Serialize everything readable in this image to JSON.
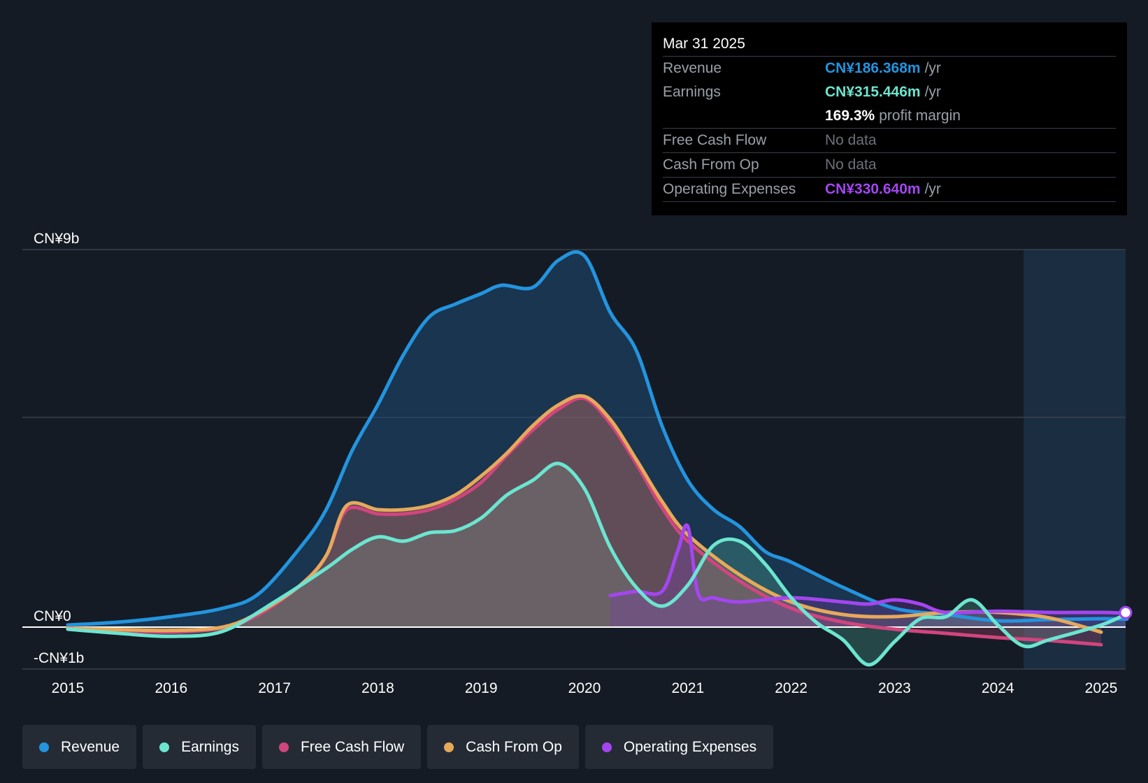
{
  "tooltip": {
    "date": "Mar 31 2025",
    "rows": [
      {
        "label": "Revenue",
        "value": "CN¥186.368m",
        "unit": "/yr",
        "color": "#2394df"
      },
      {
        "label": "Earnings",
        "value": "CN¥315.446m",
        "unit": "/yr",
        "color": "#6ce5d0"
      },
      {
        "label": "",
        "value": "169.3%",
        "unit": "profit margin",
        "color": "#ffffff"
      },
      {
        "label": "Free Cash Flow",
        "value": "No data",
        "unit": "",
        "color": "#6c7179"
      },
      {
        "label": "Cash From Op",
        "value": "No data",
        "unit": "",
        "color": "#6c7179"
      },
      {
        "label": "Operating Expenses",
        "value": "CN¥330.640m",
        "unit": "/yr",
        "color": "#a346f0"
      }
    ]
  },
  "legend": [
    {
      "label": "Revenue",
      "color": "#2394df"
    },
    {
      "label": "Earnings",
      "color": "#6ce5d0"
    },
    {
      "label": "Free Cash Flow",
      "color": "#d1457e"
    },
    {
      "label": "Cash From Op",
      "color": "#e6a95a"
    },
    {
      "label": "Operating Expenses",
      "color": "#a346f0"
    }
  ],
  "chart_data": {
    "type": "line",
    "y_tick_labels": [
      "CN¥9b",
      "CN¥0",
      "-CN¥1b"
    ],
    "y_ticks": [
      9,
      0,
      -1
    ],
    "ylim": [
      -1,
      9
    ],
    "xlim": [
      2014.57,
      2025.25
    ],
    "x_ticks": [
      2015,
      2016,
      2017,
      2018,
      2019,
      2020,
      2021,
      2022,
      2023,
      2024,
      2025
    ],
    "x_tick_labels": [
      "2015",
      "2016",
      "2017",
      "2018",
      "2019",
      "2020",
      "2021",
      "2022",
      "2023",
      "2024",
      "2025"
    ],
    "grid": true,
    "legend_position": "bottom",
    "units": "CN¥ billions",
    "series": [
      {
        "name": "Revenue",
        "color": "#2394df",
        "x": [
          2015.0,
          2015.5,
          2016.0,
          2016.5,
          2016.85,
          2017.25,
          2017.5,
          2017.75,
          2018.0,
          2018.25,
          2018.5,
          2018.75,
          2019.0,
          2019.2,
          2019.5,
          2019.75,
          2020.0,
          2020.25,
          2020.5,
          2020.75,
          2021.0,
          2021.25,
          2021.5,
          2021.75,
          2022.0,
          2022.5,
          2023.0,
          2023.5,
          2024.0,
          2024.5,
          2025.0,
          2025.25
        ],
        "y": [
          0.05,
          0.12,
          0.25,
          0.45,
          0.8,
          1.9,
          2.8,
          4.2,
          5.3,
          6.5,
          7.4,
          7.7,
          7.95,
          8.15,
          8.1,
          8.75,
          8.85,
          7.5,
          6.6,
          4.8,
          3.5,
          2.8,
          2.4,
          1.8,
          1.55,
          0.95,
          0.45,
          0.3,
          0.15,
          0.18,
          0.2,
          0.19
        ]
      },
      {
        "name": "Earnings",
        "color": "#6ce5d0",
        "x": [
          2015.0,
          2015.5,
          2016.0,
          2016.5,
          2017.0,
          2017.5,
          2017.75,
          2018.0,
          2018.25,
          2018.5,
          2018.75,
          2019.0,
          2019.25,
          2019.5,
          2019.75,
          2020.0,
          2020.25,
          2020.5,
          2020.75,
          2021.0,
          2021.25,
          2021.5,
          2021.75,
          2022.0,
          2022.25,
          2022.5,
          2022.75,
          2023.0,
          2023.25,
          2023.5,
          2023.75,
          2024.0,
          2024.25,
          2024.5,
          2025.0,
          2025.25
        ],
        "y": [
          -0.05,
          -0.15,
          -0.22,
          -0.1,
          0.6,
          1.4,
          1.85,
          2.15,
          2.05,
          2.25,
          2.3,
          2.6,
          3.15,
          3.5,
          3.9,
          3.3,
          1.9,
          0.95,
          0.5,
          1.0,
          1.95,
          2.05,
          1.5,
          0.7,
          0.1,
          -0.3,
          -0.9,
          -0.35,
          0.2,
          0.25,
          0.65,
          0.05,
          -0.45,
          -0.3,
          0.05,
          0.32
        ]
      },
      {
        "name": "Free Cash Flow",
        "color": "#d1457e",
        "x": [
          2015.0,
          2015.5,
          2016.0,
          2016.5,
          2016.85,
          2017.25,
          2017.5,
          2017.7,
          2018.0,
          2018.25,
          2018.5,
          2018.75,
          2019.0,
          2019.25,
          2019.5,
          2019.75,
          2020.0,
          2020.25,
          2020.5,
          2020.75,
          2021.0,
          2021.5,
          2022.0,
          2022.5,
          2023.0,
          2023.5,
          2024.0,
          2024.5,
          2025.0
        ],
        "y": [
          -0.02,
          -0.08,
          -0.12,
          -0.02,
          0.3,
          1.0,
          1.7,
          2.8,
          2.7,
          2.7,
          2.8,
          3.05,
          3.45,
          4.1,
          4.7,
          5.2,
          5.45,
          4.85,
          3.9,
          2.85,
          2.05,
          1.1,
          0.45,
          0.12,
          -0.05,
          -0.15,
          -0.25,
          -0.32,
          -0.42
        ]
      },
      {
        "name": "Cash From Op",
        "color": "#e6a95a",
        "x": [
          2015.0,
          2015.5,
          2016.0,
          2016.5,
          2016.85,
          2017.25,
          2017.5,
          2017.7,
          2018.0,
          2018.25,
          2018.5,
          2018.75,
          2019.0,
          2019.25,
          2019.5,
          2019.75,
          2020.0,
          2020.25,
          2020.5,
          2020.75,
          2021.0,
          2021.5,
          2022.0,
          2022.5,
          2023.0,
          2023.5,
          2024.0,
          2024.5,
          2025.0
        ],
        "y": [
          -0.03,
          -0.06,
          -0.08,
          0.0,
          0.35,
          1.0,
          1.7,
          2.9,
          2.8,
          2.8,
          2.9,
          3.15,
          3.6,
          4.15,
          4.8,
          5.3,
          5.5,
          4.95,
          4.0,
          3.0,
          2.2,
          1.25,
          0.6,
          0.3,
          0.25,
          0.35,
          0.35,
          0.22,
          -0.12
        ]
      },
      {
        "name": "Operating Expenses",
        "color": "#a346f0",
        "x": [
          2020.25,
          2020.5,
          2020.75,
          2020.9,
          2021.0,
          2021.1,
          2021.25,
          2021.5,
          2022.0,
          2022.5,
          2022.75,
          2023.0,
          2023.25,
          2023.5,
          2024.0,
          2024.5,
          2025.0,
          2025.25
        ],
        "y": [
          0.75,
          0.85,
          0.85,
          1.8,
          2.4,
          0.8,
          0.7,
          0.6,
          0.7,
          0.6,
          0.55,
          0.65,
          0.55,
          0.35,
          0.38,
          0.35,
          0.35,
          0.33
        ]
      }
    ]
  }
}
